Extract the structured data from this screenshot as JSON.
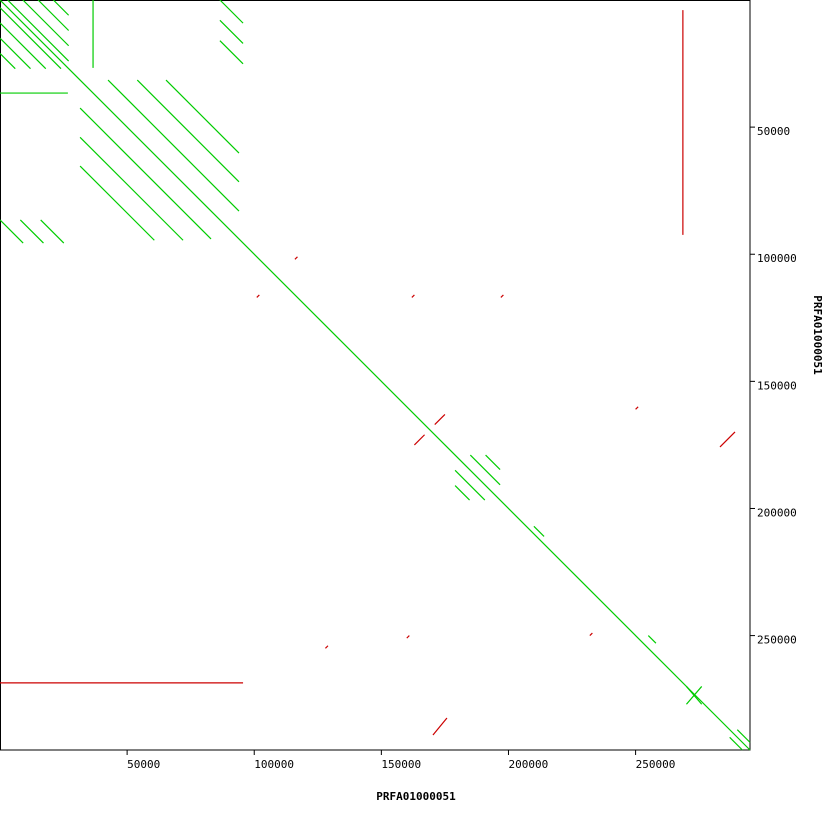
{
  "chart_data": {
    "type": "dotplot",
    "xlabel": "PRFA01000051",
    "ylabel": "PRFA01000051",
    "xlim": [
      0,
      295000
    ],
    "ylim": [
      0,
      295000
    ],
    "xticks": [
      50000,
      100000,
      150000,
      200000,
      250000
    ],
    "yticks": [
      50000,
      100000,
      150000,
      200000,
      250000
    ],
    "series": [
      {
        "color": "#00cc00",
        "segments": [
          [
            0,
            0,
            295000,
            295000
          ],
          [
            3000,
            0,
            27000,
            24000
          ],
          [
            9000,
            0,
            27000,
            18000
          ],
          [
            15000,
            0,
            27000,
            12000
          ],
          [
            21000,
            0,
            27000,
            6000
          ],
          [
            0,
            3000,
            24000,
            27000
          ],
          [
            0,
            9000,
            18000,
            27000
          ],
          [
            0,
            15000,
            12000,
            27000
          ],
          [
            0,
            21000,
            6000,
            27000
          ],
          [
            42500,
            31500,
            94000,
            83000
          ],
          [
            54000,
            31500,
            94000,
            71500
          ],
          [
            65300,
            31500,
            94000,
            60200
          ],
          [
            31500,
            42500,
            83000,
            94000
          ],
          [
            31500,
            54000,
            72000,
            94500
          ],
          [
            31500,
            65300,
            60700,
            94500
          ],
          [
            86500,
            0,
            95600,
            9100
          ],
          [
            86500,
            8000,
            95600,
            17100
          ],
          [
            86500,
            16000,
            95600,
            25100
          ],
          [
            0,
            86500,
            9100,
            95600
          ],
          [
            8000,
            86500,
            17100,
            95600
          ],
          [
            16000,
            86500,
            25100,
            95600
          ],
          [
            185000,
            179000,
            196700,
            190700
          ],
          [
            191000,
            179000,
            196700,
            184700
          ],
          [
            179000,
            185000,
            190700,
            196700
          ],
          [
            179000,
            191000,
            184700,
            196700
          ],
          [
            290000,
            287000,
            295000,
            292000
          ],
          [
            287000,
            290000,
            292000,
            295000
          ],
          [
            36600,
            0,
            36600,
            26700
          ],
          [
            0,
            36600,
            26700,
            36600
          ],
          [
            270000,
            270000,
            276000,
            277000
          ],
          [
            276000,
            270000,
            270000,
            277000
          ],
          [
            210000,
            207000,
            214000,
            211000
          ],
          [
            255000,
            250000,
            258000,
            253000
          ]
        ]
      },
      {
        "color": "#cc0000",
        "segments": [
          [
            283200,
            175800,
            289100,
            169900
          ],
          [
            170300,
            289100,
            175800,
            282400
          ],
          [
            268600,
            4000,
            268600,
            92400
          ],
          [
            0,
            268600,
            95600,
            268600
          ],
          [
            163000,
            175000,
            167000,
            171000
          ],
          [
            175000,
            163000,
            171000,
            167000
          ],
          [
            101000,
            117000,
            102000,
            116000
          ],
          [
            117000,
            101000,
            116000,
            102000
          ],
          [
            162000,
            117000,
            163000,
            116000
          ],
          [
            197000,
            117000,
            198000,
            116000
          ],
          [
            250000,
            161000,
            251000,
            160000
          ],
          [
            161000,
            250000,
            160000,
            251000
          ],
          [
            232000,
            250000,
            233000,
            249000
          ],
          [
            128000,
            255000,
            129000,
            254000
          ]
        ]
      }
    ]
  }
}
